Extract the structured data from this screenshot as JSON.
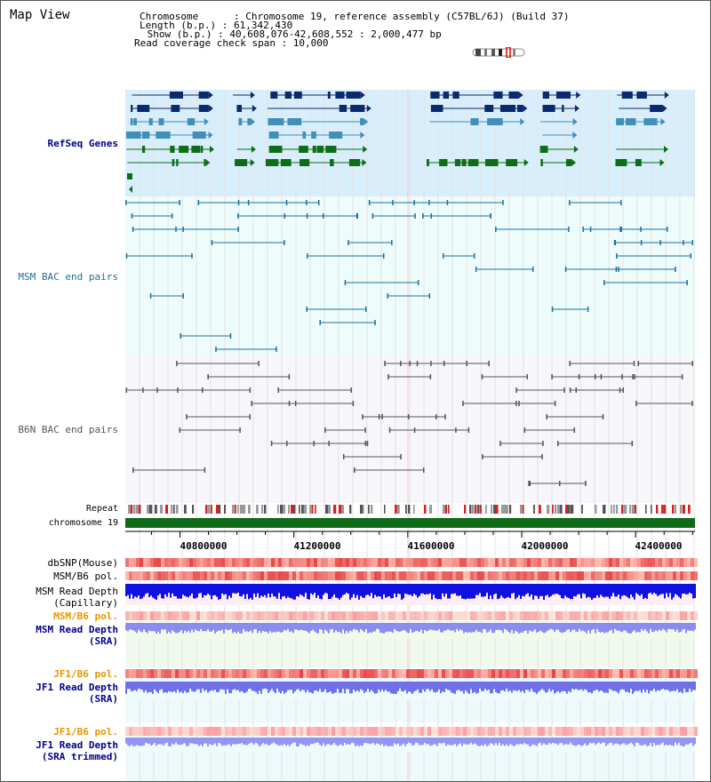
{
  "header": {
    "title": "Map View",
    "chromosome_line": "Chromosome      : Chromosome 19, reference assembly (C57BL/6J) (Build 37)",
    "length_line": "Length (b.p.) : 61,342,430",
    "show_line": " Show (b.p.) : 40,608,076-42,608,552 : 2,000,477 bp",
    "coverage_line": "Read coverage check span : 10,000"
  },
  "tracks": {
    "refseq": {
      "label": "RefSeq Genes",
      "color": "#00008b"
    },
    "msm_bac": {
      "label": "MSM BAC end pairs",
      "color": "#1f6f9f"
    },
    "b6n_bac": {
      "label": "B6N BAC end pairs",
      "color": "#555555"
    },
    "repeat": {
      "label": "Repeat"
    },
    "chromosome": {
      "label": "chromosome 19"
    },
    "dbsnp": {
      "label": "dbSNP(Mouse)"
    },
    "msm_b6_pol_1": {
      "label": "MSM/B6 pol."
    },
    "msm_depth_cap": {
      "label": "MSM Read Depth",
      "sub": "(Capillary)"
    },
    "msm_b6_pol_2": {
      "label": "MSM/B6 pol."
    },
    "msm_depth_sra": {
      "label": "MSM Read Depth",
      "sub": "(SRA)"
    },
    "jf1_b6_pol_1": {
      "label": "JF1/B6 pol."
    },
    "jf1_depth_sra": {
      "label": "JF1 Read Depth",
      "sub": "(SRA)"
    },
    "jf1_b6_pol_2": {
      "label": "JF1/B6 pol."
    },
    "jf1_depth_trim": {
      "label": "JF1 Read Depth",
      "sub": "(SRA trimmed)"
    }
  },
  "axis": {
    "range": [
      40608076,
      42608552
    ],
    "ticks": [
      "40800000",
      "41200000",
      "41600000",
      "42000000",
      "42400000"
    ],
    "tick_values": [
      40800000,
      41200000,
      41600000,
      42000000,
      42400000
    ]
  }
}
